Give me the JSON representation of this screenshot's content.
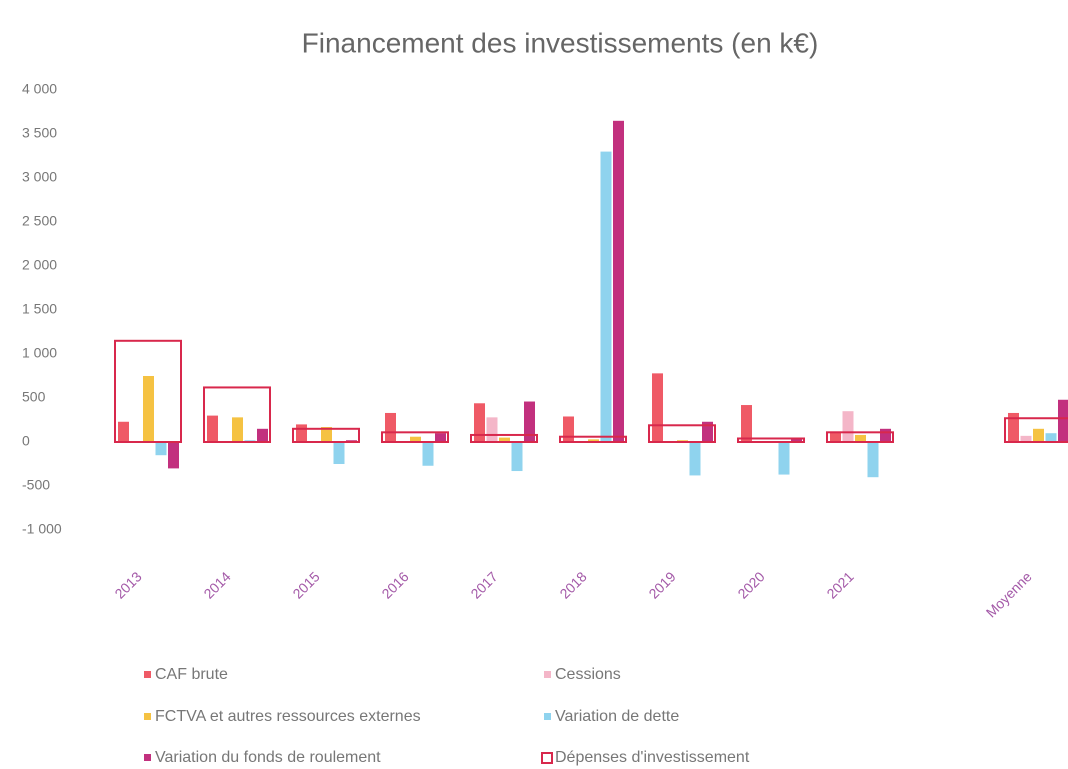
{
  "chart_data": {
    "type": "bar",
    "title": "Financement des investissements (en k€)",
    "categories": [
      "2013",
      "2014",
      "2015",
      "2016",
      "2017",
      "2018",
      "2019",
      "2020",
      "2021",
      null,
      "Moyenne"
    ],
    "series": [
      {
        "name": "CAF brute",
        "color": "#ef5a66",
        "values": [
          230,
          300,
          200,
          330,
          440,
          290,
          780,
          420,
          120,
          null,
          330
        ]
      },
      {
        "name": "Cessions",
        "color": "#f4b6c8",
        "values": [
          0,
          0,
          0,
          0,
          280,
          0,
          0,
          0,
          350,
          null,
          70
        ]
      },
      {
        "name": "FCTVA et autres ressources externes",
        "color": "#f5c242",
        "values": [
          750,
          280,
          170,
          60,
          50,
          30,
          20,
          10,
          80,
          null,
          150
        ]
      },
      {
        "name": "Variation de dette",
        "color": "#8fd3ee",
        "values": [
          -150,
          20,
          -250,
          -270,
          -330,
          3300,
          -380,
          -370,
          -400,
          null,
          100
        ]
      },
      {
        "name": "Variation du fonds de roulement",
        "color": "#c2307e",
        "values": [
          -300,
          150,
          20,
          100,
          460,
          3650,
          230,
          50,
          150,
          null,
          480
        ]
      },
      {
        "name": "Dépenses d'investissement",
        "color": "#d8284c",
        "outline": true,
        "values": [
          1150,
          620,
          150,
          110,
          80,
          60,
          190,
          40,
          110,
          null,
          270
        ]
      }
    ],
    "ylim": [
      -1000,
      4000
    ],
    "yticks": [
      {
        "value": -1000,
        "label": "-1 000"
      },
      -500,
      0,
      500,
      {
        "value": 1000,
        "label": "1 000"
      },
      {
        "value": 1500,
        "label": "1 500"
      },
      {
        "value": 2000,
        "label": "2 000"
      },
      {
        "value": 2500,
        "label": "2 500"
      },
      {
        "value": 3000,
        "label": "3 000"
      },
      {
        "value": 3500,
        "label": "3 500"
      },
      {
        "value": 4000,
        "label": "4 000"
      }
    ],
    "grid": false,
    "legend": "bottom"
  }
}
